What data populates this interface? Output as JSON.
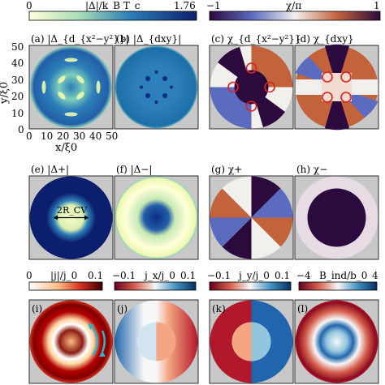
{
  "colorbars": {
    "gap": {
      "label": "|Δ|/k_B T_c",
      "min": "0",
      "max": "1.76"
    },
    "phase": {
      "label": "χ/π",
      "min": "−1",
      "max": "1"
    },
    "j": {
      "label": "|j|/j_0",
      "min": "0",
      "max": "0.1"
    },
    "jx": {
      "label": "j_x/j_0",
      "min": "−0.1",
      "max": "0.1"
    },
    "jy": {
      "label": "j_y/j_0",
      "min": "−0.1",
      "max": "0.1"
    },
    "b": {
      "label": "B_ind/b_0",
      "min": "−4",
      "max": "4"
    }
  },
  "panels": [
    {
      "tag": "(a)",
      "label": "|Δ_{d_{x²−y²}}|"
    },
    {
      "tag": "(b)",
      "label": "|Δ_{dxy}|"
    },
    {
      "tag": "(c)",
      "label": "χ_{d_{x²−y²}}"
    },
    {
      "tag": "(d)",
      "label": "χ_{dxy}"
    },
    {
      "tag": "(e)",
      "label": "|Δ+|"
    },
    {
      "tag": "(f)",
      "label": "|Δ−|"
    },
    {
      "tag": "(g)",
      "label": "χ+"
    },
    {
      "tag": "(h)",
      "label": "χ−"
    },
    {
      "tag": "(i)",
      "label": ""
    },
    {
      "tag": "(j)",
      "label": ""
    },
    {
      "tag": "(k)",
      "label": ""
    },
    {
      "tag": "(l)",
      "label": ""
    }
  ],
  "axes": {
    "y_ticks": [
      "50",
      "40",
      "30",
      "20",
      "10",
      "0"
    ],
    "x_ticks": [
      "0",
      "10",
      "20",
      "30",
      "40",
      "50"
    ],
    "ylabel": "y/ξ0",
    "xlabel": "x/ξ0"
  },
  "annotation": "2R_CV",
  "colors": {
    "panel_bg": "#c8c8c8",
    "vortex_circle": "#e02020",
    "current_arrow": "#2bb8c8"
  }
}
